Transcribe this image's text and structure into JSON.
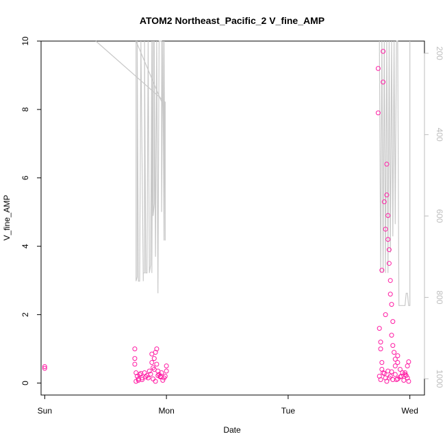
{
  "chart_data": {
    "type": "scatter",
    "title": "ATOM2 Northeast_Pacific_2 V_fine_AMP",
    "xlabel": "Date",
    "ylabel": "V_fine_AMP",
    "x_ticks": [
      "Sun",
      "Mon",
      "Tue",
      "Wed"
    ],
    "xlim": [
      -0.03,
      3.12
    ],
    "ylim": [
      -0.35,
      10
    ],
    "y_ticks": [
      0,
      2,
      4,
      6,
      8,
      10
    ],
    "y2_ticks": [
      200,
      400,
      600,
      800,
      1000
    ],
    "y2lim": [
      1040,
      170
    ],
    "y2_reversed": true,
    "grid": false,
    "legend": "none",
    "colors": {
      "points": "#ff1aa3",
      "secondary_line": "#c8c8c8",
      "secondary_axis": "#bdbdbd",
      "axis": "#000000"
    },
    "series": [
      {
        "kind": "points",
        "axis": "left",
        "x": [
          0.0,
          0.0,
          0.74,
          0.74,
          0.74,
          0.75,
          0.76,
          0.77,
          0.78,
          0.8,
          0.82,
          0.84,
          0.86,
          0.88,
          0.88,
          0.89,
          0.9,
          0.9,
          0.91,
          0.92,
          0.92,
          0.93,
          0.94,
          0.95,
          0.96,
          0.98,
          1.0,
          1.0,
          0.77,
          0.79,
          0.83,
          0.87,
          0.89,
          0.93,
          0.97,
          0.99,
          0.75,
          0.8,
          0.85,
          0.91,
          0.95,
          2.74,
          2.74,
          2.75,
          2.76,
          2.76,
          2.77,
          2.77,
          2.78,
          2.78,
          2.79,
          2.8,
          2.8,
          2.81,
          2.81,
          2.82,
          2.82,
          2.83,
          2.83,
          2.84,
          2.84,
          2.85,
          2.85,
          2.86,
          2.86,
          2.87,
          2.88,
          2.88,
          2.9,
          2.9,
          2.92,
          2.94,
          2.96,
          2.98,
          2.99,
          2.75,
          2.76,
          2.78,
          2.8,
          2.81,
          2.82,
          2.84,
          2.86,
          2.88,
          2.9,
          2.92,
          2.95,
          2.97,
          2.99,
          2.77,
          2.79,
          2.83,
          2.85,
          2.89,
          2.93,
          2.96,
          2.98
        ],
        "y": [
          0.48,
          0.43,
          1.0,
          0.72,
          0.55,
          0.3,
          0.2,
          0.12,
          0.25,
          0.15,
          0.3,
          0.22,
          0.35,
          0.85,
          0.6,
          0.45,
          0.72,
          0.4,
          0.9,
          1.0,
          0.55,
          0.35,
          0.25,
          0.2,
          0.3,
          0.15,
          0.5,
          0.35,
          0.08,
          0.28,
          0.18,
          0.26,
          0.12,
          0.22,
          0.08,
          0.2,
          0.05,
          0.1,
          0.15,
          0.05,
          0.18,
          9.2,
          7.9,
          1.6,
          1.2,
          1.0,
          0.6,
          3.3,
          9.7,
          8.8,
          5.3,
          4.5,
          2.0,
          6.4,
          5.5,
          4.9,
          4.2,
          3.9,
          3.5,
          3.0,
          2.6,
          2.3,
          1.4,
          1.8,
          1.1,
          0.9,
          0.7,
          0.5,
          0.8,
          0.6,
          0.4,
          0.3,
          0.25,
          0.5,
          0.62,
          0.2,
          0.1,
          0.3,
          0.15,
          0.05,
          0.35,
          0.2,
          0.1,
          0.25,
          0.12,
          0.18,
          0.08,
          0.22,
          0.05,
          0.4,
          0.28,
          0.15,
          0.33,
          0.1,
          0.2,
          0.3,
          0.15
        ]
      },
      {
        "kind": "line",
        "axis": "right",
        "x": [
          0.42,
          0.99,
          0.99,
          0.75,
          0.75,
          0.76,
          0.76,
          0.77,
          0.78,
          0.79,
          0.81,
          0.81,
          0.82,
          0.82,
          0.83,
          0.84,
          0.85,
          0.86,
          0.87,
          0.88,
          0.88,
          0.89,
          0.89,
          0.9,
          0.9,
          0.91,
          0.92,
          0.93,
          0.94,
          0.95,
          0.96,
          0.96,
          0.97,
          0.97,
          0.98,
          0.98,
          0.99,
          0.99
        ],
        "y": [
          170,
          320,
          340,
          170,
          760,
          750,
          170,
          760,
          760,
          170,
          760,
          740,
          740,
          170,
          740,
          740,
          170,
          740,
          720,
          170,
          740,
          170,
          600,
          570,
          170,
          700,
          170,
          790,
          170,
          170,
          170,
          590,
          170,
          170,
          660,
          170,
          660,
          320
        ]
      },
      {
        "kind": "line",
        "axis": "right",
        "x": [
          2.75,
          2.76,
          2.77,
          2.78,
          2.79,
          2.8,
          2.81,
          2.82,
          2.83,
          2.84,
          2.85,
          2.86,
          2.87,
          2.88,
          2.89,
          2.9,
          2.91,
          2.92,
          2.94,
          2.96,
          2.97,
          2.98,
          2.99,
          3.0,
          3.0
        ],
        "y": [
          170,
          740,
          170,
          740,
          170,
          740,
          170,
          740,
          170,
          690,
          170,
          650,
          170,
          620,
          170,
          170,
          820,
          820,
          820,
          820,
          790,
          790,
          820,
          820,
          170
        ]
      }
    ]
  }
}
